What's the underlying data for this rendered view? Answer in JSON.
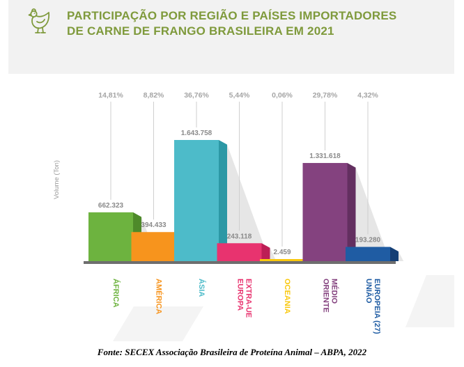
{
  "chart_data": {
    "type": "bar",
    "title": "PARTICIPAÇÃO POR REGIÃO E PAÍSES IMPORTADORES DE CARNE DE FRANGO BRASILEIRA EM 2021",
    "title_lines": [
      "PARTICIPAÇÃO POR REGIÃO E PAÍSES IMPORTADORES",
      "DE CARNE DE FRANGO BRASILEIRA EM 2021"
    ],
    "ylabel": "Volume (Ton)",
    "xlabel": "",
    "ylim": [
      0,
      1900000
    ],
    "categories": [
      {
        "label": "ÁFRICA",
        "lines": [
          "ÁFRICA"
        ],
        "value": 662323,
        "value_label": "662.323",
        "share": "14,81%",
        "color": "#6db33f",
        "side": "#4e8a2a"
      },
      {
        "label": "AMÉRICA",
        "lines": [
          "AMÉRICA"
        ],
        "value": 394433,
        "value_label": "394.433",
        "share": "8,82%",
        "color": "#f7941d",
        "side": "#d0720b"
      },
      {
        "label": "ÁSIA",
        "lines": [
          "ÁSIA"
        ],
        "value": 1643758,
        "value_label": "1.643.758",
        "share": "36,76%",
        "color": "#4dbbc9",
        "side": "#2c98a5"
      },
      {
        "label": "EUROPA EXTRA-UE",
        "lines": [
          "EUROPA",
          "EXTRA-UE"
        ],
        "value": 243118,
        "value_label": "243.118",
        "share": "5,44%",
        "color": "#e8336f",
        "side": "#bc1e55"
      },
      {
        "label": "OCEANIA",
        "lines": [
          "OCEANIA"
        ],
        "value": 2459,
        "value_label": "2.459",
        "share": "0,06%",
        "color": "#f9c80e",
        "side": "#d9a800"
      },
      {
        "label": "ORIENTE MÉDIO",
        "lines": [
          "ORIENTE",
          "MÉDIO"
        ],
        "value": 1331618,
        "value_label": "1.331.618",
        "share": "29,78%",
        "color": "#84427f",
        "side": "#632f60"
      },
      {
        "label": "UNIÃO EUROPEIA (27)",
        "lines": [
          "UNIÃO",
          "EUROPEIA (27)"
        ],
        "value": 193280,
        "value_label": "193.280",
        "share": "4,32%",
        "color": "#1f5ca3",
        "side": "#153f75"
      }
    ]
  },
  "source_text": "Fonte: SECEX Associação Brasileira de Proteína Animal – ABPA, 2022",
  "colors": {
    "title": "#7f9a3c",
    "share_text": "#a5a5a5",
    "value_text": "#8a8a8a",
    "baseline": "#6e6e6e"
  }
}
